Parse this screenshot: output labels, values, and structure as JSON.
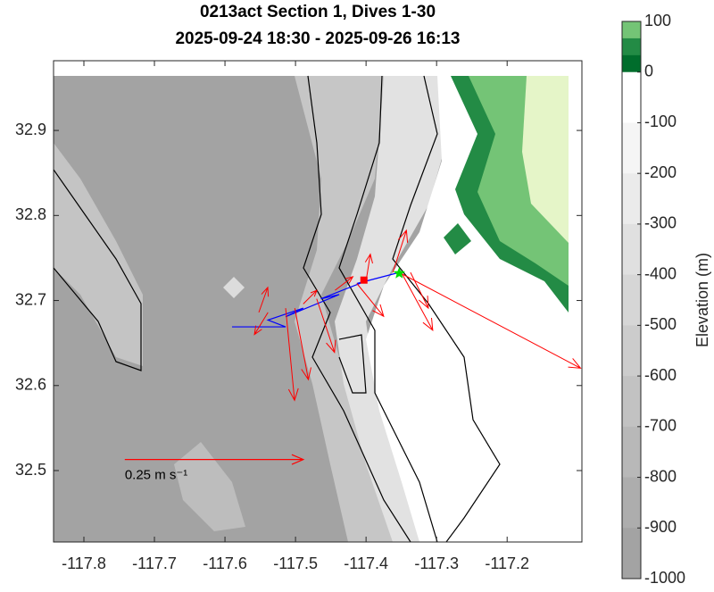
{
  "chart_data": {
    "type": "map",
    "title": "0213act Section 1, Dives 1-30",
    "subtitle": "2025-09-24 18:30 - 2025-09-26 16:13",
    "xlim": [
      -117.843,
      -117.094
    ],
    "ylim": [
      32.416,
      32.982
    ],
    "xticks": [
      -117.8,
      -117.7,
      -117.6,
      -117.5,
      -117.4,
      -117.3,
      -117.2
    ],
    "yticks": [
      32.5,
      32.6,
      32.7,
      32.8,
      32.9
    ],
    "colorbar_label": "Elevation (m)",
    "clim": [
      -1000,
      100
    ],
    "cticks": [
      100,
      0,
      -100,
      -200,
      -300,
      -400,
      -500,
      -600,
      -700,
      -800,
      -900,
      -1000
    ],
    "track": {
      "color": "#0000ff",
      "x": [
        -117.59,
        -117.514,
        -117.539,
        -117.489,
        -117.514,
        -117.438,
        -117.464,
        -117.4,
        -117.413,
        -117.353
      ],
      "y": [
        32.669,
        32.669,
        32.677,
        32.691,
        32.681,
        32.707,
        32.702,
        32.723,
        32.72,
        32.733
      ]
    },
    "currents": {
      "color": "#ff0000",
      "x": [
        -117.552,
        -117.539,
        -117.514,
        -117.501,
        -117.489,
        -117.47,
        -117.444,
        -117.413,
        -117.4,
        -117.362,
        -117.35,
        -117.337,
        -117.353
      ],
      "y": [
        32.686,
        32.686,
        32.691,
        32.691,
        32.696,
        32.702,
        32.712,
        32.72,
        32.723,
        32.733,
        32.733,
        32.733,
        32.733
      ],
      "u": [
        0.0125,
        -0.019,
        0.0125,
        0.019,
        0.019,
        0.025,
        0.025,
        0.0375,
        0.006,
        0.019,
        0.044,
        0.025,
        0.254
      ],
      "v": [
        0.035,
        -0.031,
        -0.129,
        -0.1,
        0.019,
        -0.075,
        0.019,
        -0.046,
        0.0375,
        0.059,
        -0.081,
        -0.05,
        -0.134
      ]
    },
    "end_marker": {
      "x": -117.403,
      "y": 32.724,
      "color": "#ff0000"
    },
    "start_marker": {
      "x": -117.353,
      "y": 32.732,
      "color": "#00dd00"
    },
    "scale_arrow": {
      "x": -117.742,
      "y": 32.513,
      "u": 0.25,
      "label": "0.25 m s⁻¹"
    }
  }
}
